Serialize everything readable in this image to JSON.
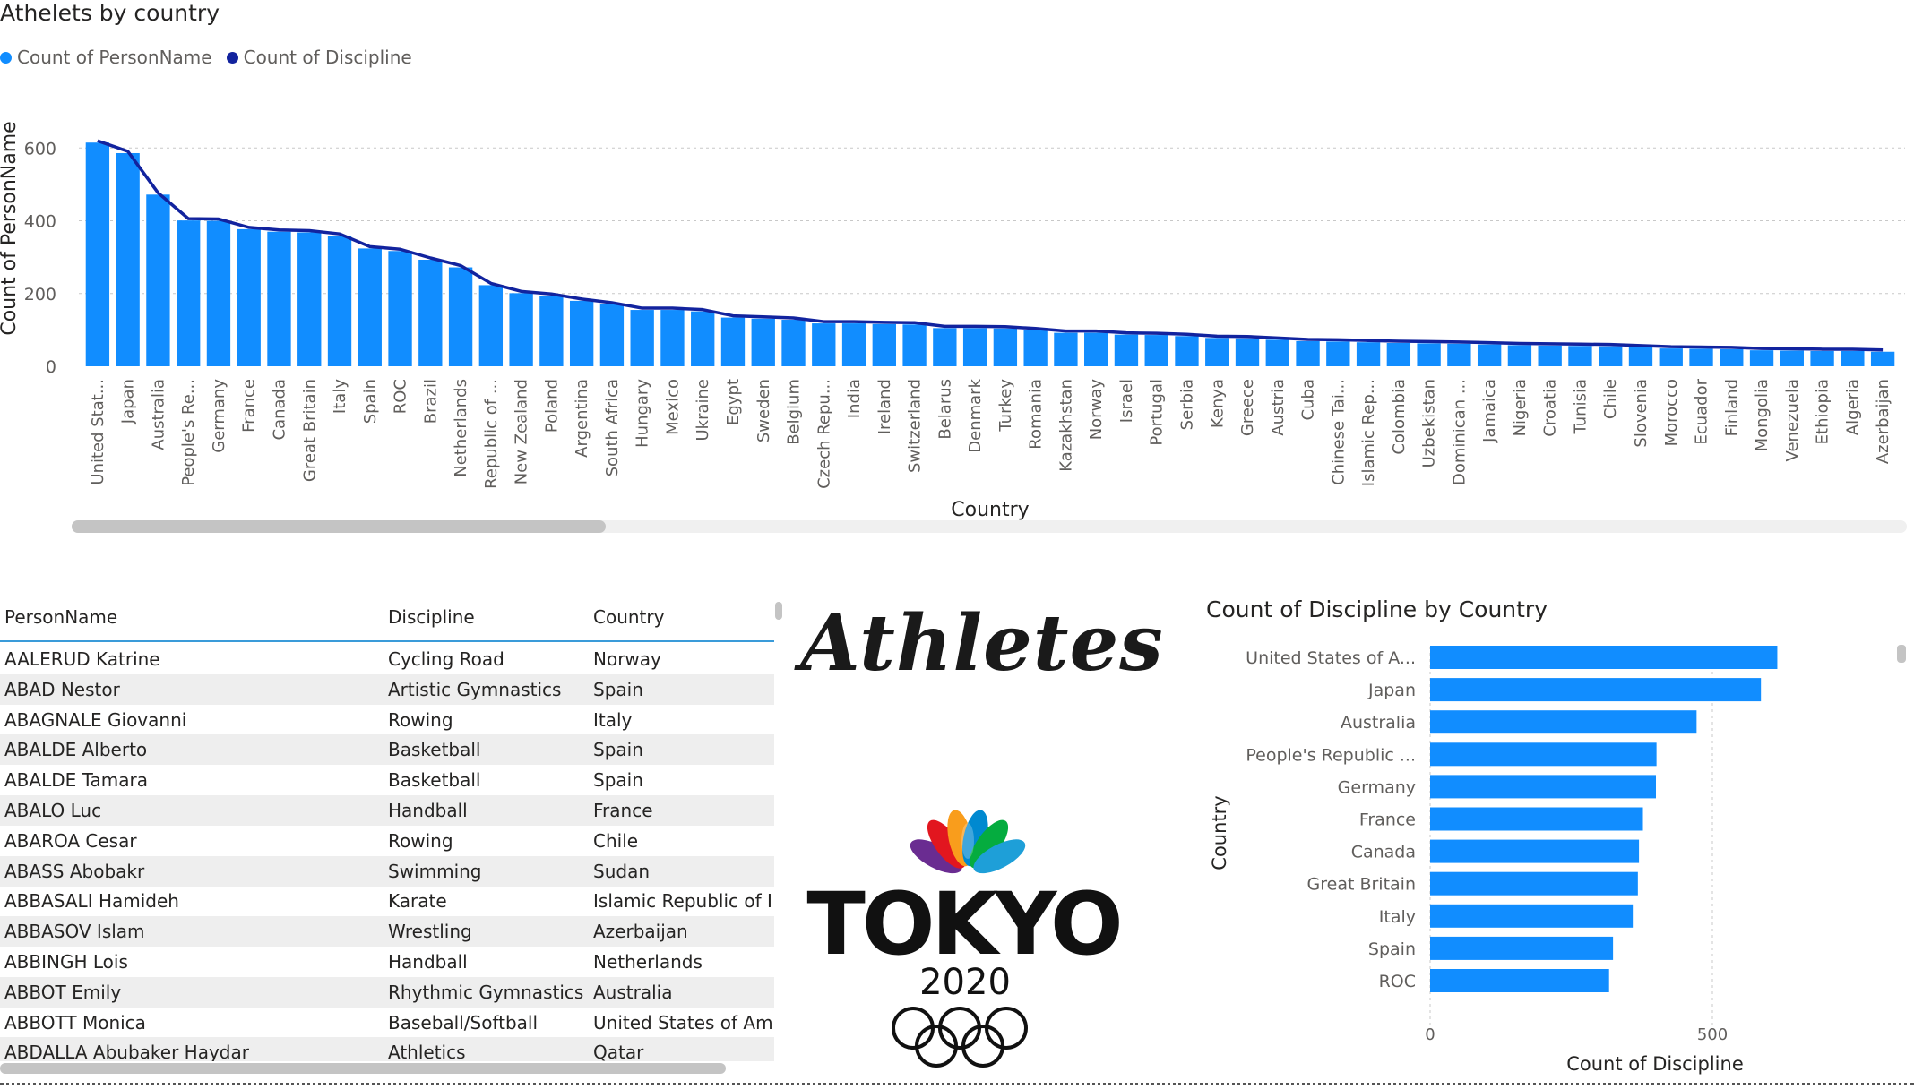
{
  "top_chart": {
    "title": "Athelets by country",
    "legend": [
      {
        "label": "Count of PersonName",
        "color": "#118dff"
      },
      {
        "label": "Count of Discipline",
        "color": "#12239e"
      }
    ]
  },
  "table": {
    "columns": [
      "PersonName",
      "Discipline",
      "Country"
    ],
    "rows": [
      [
        "AALERUD Katrine",
        "Cycling Road",
        "Norway"
      ],
      [
        "ABAD Nestor",
        "Artistic Gymnastics",
        "Spain"
      ],
      [
        "ABAGNALE Giovanni",
        "Rowing",
        "Italy"
      ],
      [
        "ABALDE Alberto",
        "Basketball",
        "Spain"
      ],
      [
        "ABALDE Tamara",
        "Basketball",
        "Spain"
      ],
      [
        "ABALO Luc",
        "Handball",
        "France"
      ],
      [
        "ABAROA Cesar",
        "Rowing",
        "Chile"
      ],
      [
        "ABASS Abobakr",
        "Swimming",
        "Sudan"
      ],
      [
        "ABBASALI Hamideh",
        "Karate",
        "Islamic Republic of Iran"
      ],
      [
        "ABBASOV Islam",
        "Wrestling",
        "Azerbaijan"
      ],
      [
        "ABBINGH Lois",
        "Handball",
        "Netherlands"
      ],
      [
        "ABBOT Emily",
        "Rhythmic Gymnastics",
        "Australia"
      ],
      [
        "ABBOTT Monica",
        "Baseball/Softball",
        "United States of America"
      ],
      [
        "ABDALLA Abubaker Haydar",
        "Athletics",
        "Qatar"
      ]
    ]
  },
  "logo": {
    "title": "Athletes",
    "tokyo_text": "TOKYO",
    "year_text": "2020"
  },
  "chart_data": [
    {
      "type": "bar",
      "title": "Athelets by country",
      "xlabel": "Country",
      "ylabel": "Count of PersonName",
      "ylim": [
        0,
        650
      ],
      "yticks": [
        0,
        200,
        400,
        600
      ],
      "grid": true,
      "legend_position": "top-left",
      "categories": [
        "United Stat...",
        "Japan",
        "Australia",
        "People's Re...",
        "Germany",
        "France",
        "Canada",
        "Great Britain",
        "Italy",
        "Spain",
        "ROC",
        "Brazil",
        "Netherlands",
        "Republic of ...",
        "New Zealand",
        "Poland",
        "Argentina",
        "South Africa",
        "Hungary",
        "Mexico",
        "Ukraine",
        "Egypt",
        "Sweden",
        "Belgium",
        "Czech Repu...",
        "India",
        "Ireland",
        "Switzerland",
        "Belarus",
        "Denmark",
        "Turkey",
        "Romania",
        "Kazakhstan",
        "Norway",
        "Israel",
        "Portugal",
        "Serbia",
        "Kenya",
        "Greece",
        "Austria",
        "Cuba",
        "Chinese Tai...",
        "Islamic Rep...",
        "Colombia",
        "Uzbekistan",
        "Dominican ...",
        "Jamaica",
        "Nigeria",
        "Croatia",
        "Tunisia",
        "Chile",
        "Slovenia",
        "Morocco",
        "Ecuador",
        "Finland",
        "Mongolia",
        "Venezuela",
        "Ethiopia",
        "Algeria",
        "Azerbaijan"
      ],
      "series": [
        {
          "name": "Count of PersonName",
          "type": "bar",
          "color": "#118dff",
          "values": [
            615,
            586,
            472,
            401,
            400,
            377,
            370,
            368,
            359,
            324,
            317,
            293,
            272,
            223,
            201,
            194,
            180,
            170,
            155,
            155,
            151,
            134,
            131,
            128,
            118,
            118,
            116,
            115,
            105,
            105,
            104,
            99,
            92,
            92,
            87,
            86,
            83,
            78,
            77,
            73,
            69,
            68,
            66,
            64,
            63,
            62,
            60,
            58,
            57,
            56,
            55,
            52,
            49,
            48,
            47,
            44,
            43,
            42,
            42,
            40
          ]
        },
        {
          "name": "Count of Discipline",
          "type": "line",
          "color": "#12239e",
          "values": [
            615,
            586,
            472,
            401,
            400,
            377,
            370,
            368,
            359,
            324,
            317,
            293,
            272,
            223,
            201,
            194,
            180,
            170,
            155,
            155,
            151,
            134,
            131,
            128,
            118,
            118,
            116,
            115,
            105,
            105,
            104,
            99,
            92,
            92,
            87,
            86,
            83,
            78,
            77,
            73,
            69,
            68,
            66,
            64,
            63,
            62,
            60,
            58,
            57,
            56,
            55,
            52,
            49,
            48,
            47,
            44,
            43,
            42,
            42,
            40
          ]
        }
      ]
    },
    {
      "type": "bar",
      "orientation": "horizontal",
      "title": "Count of Discipline by Country",
      "xlabel": "Count of Discipline",
      "ylabel": "Country",
      "xlim": [
        0,
        800
      ],
      "xticks": [
        0,
        500
      ],
      "grid": true,
      "categories": [
        "United States of A...",
        "Japan",
        "Australia",
        "People's Republic ...",
        "Germany",
        "France",
        "Canada",
        "Great Britain",
        "Italy",
        "Spain",
        "ROC"
      ],
      "series": [
        {
          "name": "Count of Discipline",
          "color": "#118dff",
          "values": [
            615,
            586,
            472,
            401,
            400,
            377,
            370,
            368,
            359,
            324,
            317
          ]
        }
      ]
    }
  ]
}
